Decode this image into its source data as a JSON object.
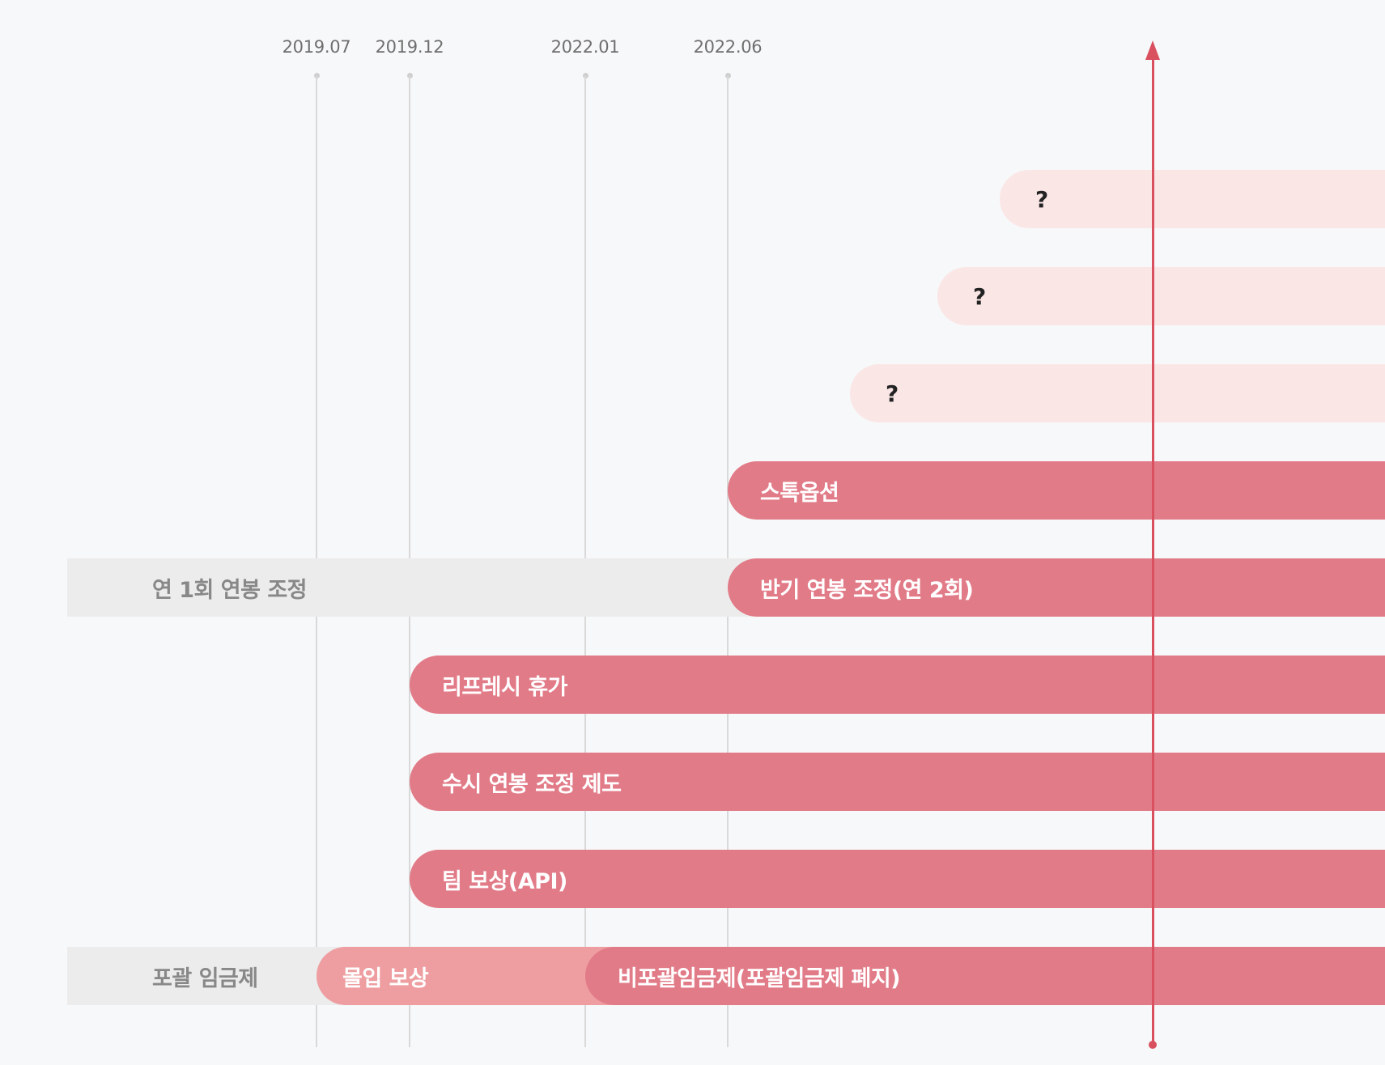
{
  "timeline": {
    "ticks": [
      {
        "label": "2019.07"
      },
      {
        "label": "2019.12"
      },
      {
        "label": "2022.01"
      },
      {
        "label": "2022.06"
      }
    ],
    "rows": [
      {
        "label": "?",
        "start": "future-3",
        "style": "light"
      },
      {
        "label": "?",
        "start": "future-2",
        "style": "light"
      },
      {
        "label": "?",
        "start": "future-1",
        "style": "light"
      },
      {
        "label": "스톡옵션",
        "start": "2022.06",
        "style": "main"
      },
      {
        "label": "반기 연봉 조정(연 2회)",
        "start": "2022.06",
        "style": "main",
        "previous": {
          "label": "연 1회 연봉 조정"
        }
      },
      {
        "label": "리프레시 휴가",
        "start": "2019.12",
        "style": "main"
      },
      {
        "label": "수시 연봉 조정 제도",
        "start": "2019.12",
        "style": "main"
      },
      {
        "label": "팀 보상(API)",
        "start": "2019.12",
        "style": "main"
      },
      {
        "label": "비포괄임금제(포괄임금제 폐지)",
        "start": "2022.01",
        "style": "main",
        "previous": {
          "label": "포괄 임금제"
        },
        "intermediate": {
          "label": "몰입 보상",
          "start": "2019.07"
        }
      }
    ],
    "colors": {
      "bar": "#e27b88",
      "bar_light": "#fbe6e6",
      "bar_mid": "#ee9ea1",
      "previous_bg": "#ececec",
      "now_marker": "#d9505f"
    }
  }
}
